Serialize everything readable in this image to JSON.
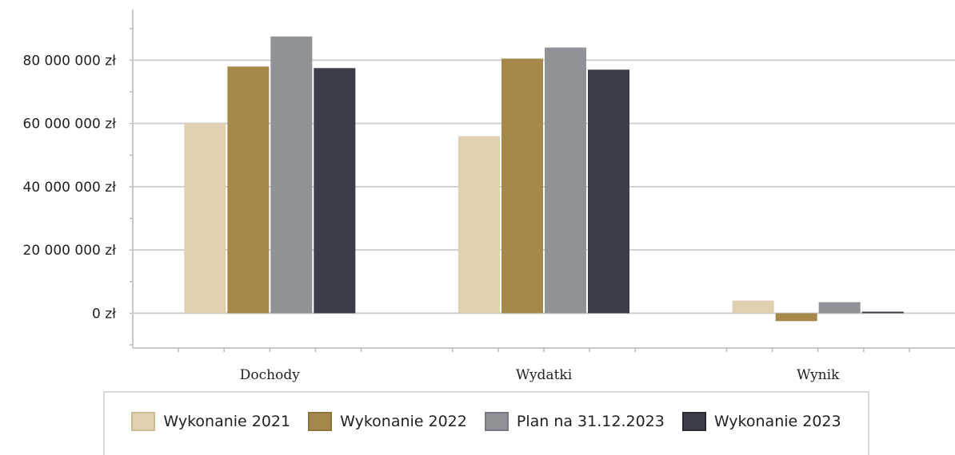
{
  "chart_data": {
    "type": "bar",
    "categories": [
      "Dochody",
      "Wydatki",
      "Wynik"
    ],
    "series": [
      {
        "name": "Wykonanie 2021",
        "values": [
          60000000,
          56000000,
          4000000
        ],
        "color": "#dfd0b0",
        "border": "#cdbb96"
      },
      {
        "name": "Wykonanie 2022",
        "values": [
          78000000,
          80500000,
          -2500000
        ],
        "color": "#a6884b",
        "border": "#8c713a"
      },
      {
        "name": "Plan na 31.12.2023",
        "values": [
          87500000,
          84000000,
          3500000
        ],
        "color": "#8f9296",
        "border": "#777a7e"
      },
      {
        "name": "Wykonanie 2023",
        "values": [
          77500000,
          77000000,
          500000
        ],
        "color": "#3b3d48",
        "border": "#2a2c35"
      }
    ],
    "ylim": [
      -11000000,
      96000000
    ],
    "yticks": [
      0,
      20000000,
      40000000,
      60000000,
      80000000
    ],
    "ytick_labels": [
      "0 zł",
      "20 000 000 zł",
      "40 000 000 zł",
      "60 000 000 zł",
      "80 000 000 zł"
    ],
    "grid": true,
    "legend_position": "bottom",
    "title": "",
    "xlabel": "",
    "ylabel": ""
  }
}
